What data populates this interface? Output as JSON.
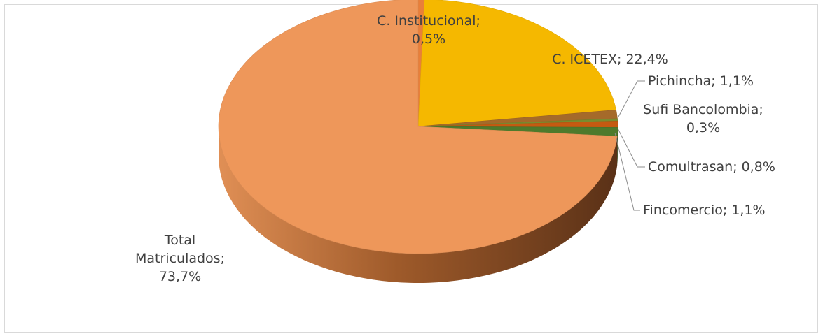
{
  "chart_data": {
    "type": "pie",
    "style": "3d",
    "slices": [
      {
        "name": "C. Institucional",
        "value": 0.5,
        "label_lines": [
          "C. Institucional;",
          "0,5%"
        ],
        "color": "#E97F3A"
      },
      {
        "name": "C. ICETEX",
        "value": 22.4,
        "label_lines": [
          "C. ICETEX; 22,4%"
        ],
        "color": "#F5B800"
      },
      {
        "name": "Pichincha",
        "value": 1.1,
        "label_lines": [
          "Pichincha; 1,1%"
        ],
        "color": "#A56A2A"
      },
      {
        "name": "Sufi Bancolombia",
        "value": 0.3,
        "label_lines": [
          "Sufi Bancolombia;",
          "0,3%"
        ],
        "color": "#7A8C2F"
      },
      {
        "name": "Comultrasan",
        "value": 0.8,
        "label_lines": [
          "Comultrasan; 0,8%"
        ],
        "color": "#C55A11"
      },
      {
        "name": "Fincomercio",
        "value": 1.1,
        "label_lines": [
          "Fincomercio; 1,1%"
        ],
        "color": "#4E7A2C"
      },
      {
        "name": "Total Matriculados",
        "value": 73.7,
        "label_lines": [
          "Total",
          "Matriculados;",
          "73,7%"
        ],
        "color": "#EE975A"
      }
    ]
  }
}
